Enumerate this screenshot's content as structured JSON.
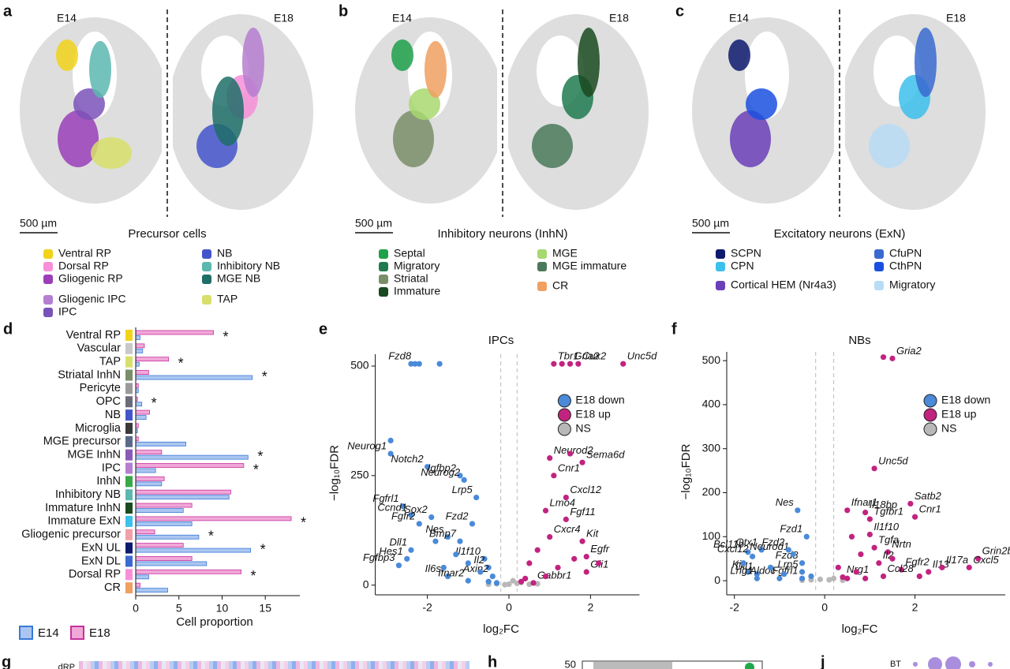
{
  "panels": [
    {
      "letter": "a",
      "left_label": "E14",
      "right_label": "E18",
      "scale_bar": "500 µm",
      "title": "Precursor cells",
      "legend_columns": [
        [
          {
            "name": "Ventral RP",
            "color": "#f2d21b"
          },
          {
            "name": "Dorsal RP",
            "color": "#f78fd8"
          },
          {
            "name": "Gliogenic RP",
            "color": "#9a3fb8"
          },
          {
            "name": "Gliogenic IPC",
            "color": "#b57ed0"
          },
          {
            "name": "IPC",
            "color": "#7b52b8"
          }
        ],
        [
          {
            "name": "NB",
            "color": "#4455cc"
          },
          {
            "name": "Inhibitory NB",
            "color": "#5bb8b0"
          },
          {
            "name": "MGE NB",
            "color": "#1f6e68"
          },
          {
            "name": "TAP",
            "color": "#d8df6a"
          }
        ]
      ]
    },
    {
      "letter": "b",
      "left_label": "E14",
      "right_label": "E18",
      "scale_bar": "500 µm",
      "title": "Inhibitory neurons (InhN)",
      "legend_columns": [
        [
          {
            "name": "Septal",
            "color": "#1fa04a"
          },
          {
            "name": "Migratory",
            "color": "#1f7a50"
          },
          {
            "name": "Striatal",
            "color": "#7a8e6a"
          },
          {
            "name": "Immature",
            "color": "#1a4a20"
          }
        ],
        [
          {
            "name": "MGE",
            "color": "#a8d870"
          },
          {
            "name": "MGE immature",
            "color": "#4a7a5a"
          },
          {
            "name": "CR",
            "color": "#f0a060"
          }
        ]
      ]
    },
    {
      "letter": "c",
      "left_label": "E14",
      "right_label": "E18",
      "scale_bar": "500 µm",
      "title": "Excitatory neurons (ExN)",
      "legend_columns": [
        [
          {
            "name": "SCPN",
            "color": "#0d1a6e"
          },
          {
            "name": "CPN",
            "color": "#3cc0ec"
          },
          {
            "name": "Cortical HEM (Nr4a3)",
            "color": "#6a3fb8"
          }
        ],
        [
          {
            "name": "CfuPN",
            "color": "#3a6ad0"
          },
          {
            "name": "CthPN",
            "color": "#1a50e0"
          },
          {
            "name": "Migratory",
            "color": "#b8dcf5"
          }
        ]
      ]
    }
  ],
  "chart_data": [
    {
      "type": "bar",
      "letter": "d",
      "orientation": "horizontal",
      "categories": [
        "Ventral RP",
        "Vascular",
        "TAP",
        "Striatal InhN",
        "Pericyte",
        "OPC",
        "NB",
        "Microglia",
        "MGE precursor",
        "MGE InhN",
        "IPC",
        "InhN",
        "Inhibitory NB",
        "Immature InhN",
        "Immature ExN",
        "Gliogenic precursor",
        "ExN UL",
        "ExN DL",
        "Dorsal RP",
        "CR"
      ],
      "category_colors": [
        "#f2d21b",
        "#c8c8c8",
        "#d8df6a",
        "#7a8e6a",
        "#9a9a9a",
        "#6a6a7a",
        "#4455cc",
        "#3a3a3a",
        "#5a6a8a",
        "#8a5ab8",
        "#b57ed0",
        "#3aa84a",
        "#5bb8b0",
        "#1a4a20",
        "#3cc0ec",
        "#f0a0a8",
        "#0d1a6e",
        "#3a6ad0",
        "#f78fd8",
        "#f0a060"
      ],
      "series": [
        {
          "name": "E14",
          "color": "#aac6f0",
          "edge": "#3a78d8",
          "values": [
            0.5,
            0.8,
            0.4,
            13.5,
            0.3,
            0.7,
            1.2,
            0.2,
            5.8,
            13,
            2.3,
            3,
            10.8,
            5.5,
            6.5,
            7.3,
            13.3,
            8.2,
            1.5,
            3.7
          ]
        },
        {
          "name": "E18",
          "color": "#f0a8d8",
          "edge": "#c8309e",
          "values": [
            9,
            1,
            3.8,
            1.5,
            0.3,
            0.2,
            1.6,
            0.3,
            0.3,
            3,
            12.5,
            3.3,
            11,
            6.5,
            18,
            2.2,
            5.5,
            6.5,
            12.2,
            0.5
          ]
        }
      ],
      "significance": [
        "*",
        null,
        "*",
        "*",
        null,
        "*",
        null,
        null,
        null,
        "*",
        "*",
        null,
        null,
        null,
        "*",
        "*",
        "*",
        null,
        "*",
        null
      ],
      "xlabel": "Cell proportion",
      "xlim": [
        0,
        19
      ],
      "xticks": [
        0,
        5,
        10,
        15
      ]
    },
    {
      "type": "scatter",
      "letter": "e",
      "title": "IPCs",
      "xlabel": "log₂FC",
      "ylabel": "−log₁₀FDR",
      "legend": "upper right",
      "xlim": [
        -3.2,
        3.2
      ],
      "xticks": [
        -2,
        0,
        2
      ],
      "ylim": [
        -15,
        527
      ],
      "yticks": [
        0,
        250,
        500
      ],
      "thresholds": [
        -0.2,
        0.2
      ],
      "series": [
        {
          "name": "E18 down",
          "color": "#4a8ad8",
          "x": [
            -2.3,
            -2.9,
            -2.0,
            -1.2,
            -1.1,
            -2.6,
            -2.4,
            -1.9,
            -1.5,
            -2.2,
            -2.4,
            -2.5,
            -1.2,
            -0.9,
            -0.8,
            -0.6,
            -0.5,
            -0.4,
            -1.5,
            -1.0,
            -2.7,
            -2.4,
            -2.2,
            -1.7,
            -2.9,
            -1.8,
            -1.3,
            -0.7,
            -1.0,
            -1.6,
            -0.5,
            -0.3
          ],
          "values": [
            505,
            300,
            270,
            250,
            240,
            180,
            160,
            155,
            110,
            140,
            80,
            60,
            100,
            140,
            200,
            60,
            40,
            20,
            20,
            10,
            45,
            505,
            505,
            505,
            330,
            100,
            70,
            30,
            50,
            40,
            8,
            5
          ],
          "point_labels": [
            "Fzd8",
            "Neurog1",
            "Notch2",
            "Igfbp2",
            "Neurog2",
            "Fgfrl1",
            "Ccnd1",
            "Sox2",
            "Nes",
            "Fgfr2",
            "Dll1",
            "Hes1",
            "Bmp7",
            "Fzd2",
            "Lrp5",
            "Il1f10",
            "Il2",
            "Axin2",
            "Il6st",
            "Ifnar2",
            "Fgfbp3",
            null,
            null,
            null,
            null,
            null,
            null,
            null,
            null,
            null,
            null,
            null
          ]
        },
        {
          "name": "E18 up",
          "color": "#c2237f",
          "x": [
            1.1,
            1.5,
            1.7,
            2.8,
            1.0,
            1.8,
            1.1,
            1.4,
            0.9,
            1.4,
            1.0,
            1.8,
            1.9,
            1.9,
            0.6,
            1.3,
            1.5,
            0.7,
            0.5,
            1.2,
            0.9,
            0.4,
            1.6,
            2.2,
            0.3
          ],
          "values": [
            505,
            505,
            505,
            505,
            290,
            280,
            250,
            200,
            170,
            150,
            110,
            100,
            65,
            30,
            5,
            505,
            300,
            80,
            50,
            40,
            20,
            15,
            60,
            50,
            8
          ],
          "point_labels": [
            "Tbr1",
            "Gria2",
            "Cux2",
            "Unc5d",
            "Neurod2",
            "Sema6d",
            "Cnr1",
            "Cxcl12",
            "Lmo4",
            "Fgf11",
            "Cxcr4",
            "Kit",
            "Egfr",
            "Gli1",
            "Gabbr1",
            null,
            null,
            null,
            null,
            null,
            null,
            null,
            null,
            null,
            null
          ]
        },
        {
          "name": "NS",
          "color": "#b8b8b8",
          "x": [
            -0.3,
            0,
            0.2,
            -0.1,
            0.3,
            0.5,
            -0.5,
            0.1,
            0.7
          ],
          "values": [
            3,
            2,
            4,
            1,
            6,
            2,
            2,
            10,
            3
          ],
          "point_labels": [
            null,
            null,
            null,
            null,
            null,
            null,
            null,
            null,
            null
          ]
        }
      ]
    },
    {
      "type": "scatter",
      "letter": "f",
      "title": "NBs",
      "xlabel": "log₂FC",
      "ylabel": "−log₁₀FDR",
      "legend": "upper right",
      "xlim": [
        -2.1,
        4.0
      ],
      "xticks": [
        -2,
        0,
        2
      ],
      "ylim": [
        -25,
        520
      ],
      "yticks": [
        0,
        100,
        200,
        300,
        400,
        500
      ],
      "thresholds": [
        -0.2,
        0.2
      ],
      "series": [
        {
          "name": "E18 down",
          "color": "#4a8ad8",
          "x": [
            -1.7,
            -1.6,
            -1.4,
            -1.7,
            -1.5,
            -1.5,
            -1.0,
            -0.5,
            -0.5,
            -0.5,
            -0.7,
            -0.4,
            -0.8,
            -0.6,
            -1.8,
            -1.2,
            -0.9,
            -0.3
          ],
          "values": [
            65,
            55,
            70,
            20,
            15,
            5,
            5,
            5,
            20,
            40,
            60,
            100,
            70,
            160,
            40,
            30,
            15,
            10
          ],
          "point_labels": [
            "Bcl11b",
            "Cxcl12",
            "Otx1",
            "Kit",
            "Dll1",
            "Lrig1",
            "Aldoc",
            "Fgfrl1",
            "Lrp5",
            "Fzd8",
            "Neurod1",
            "Fzd1",
            "Fzd2",
            "Nes",
            null,
            null,
            null,
            null
          ]
        },
        {
          "name": "E18 up",
          "color": "#c2237f",
          "x": [
            1.5,
            1.1,
            1.9,
            2.0,
            0.9,
            1.0,
            0.5,
            1.0,
            1.1,
            1.4,
            1.2,
            1.7,
            2.3,
            2.6,
            3.4,
            3.2,
            1.3,
            0.4,
            1.3,
            0.6,
            0.8,
            0.3,
            0.7,
            1.5,
            0.5,
            2.1,
            0.9
          ],
          "values": [
            505,
            255,
            175,
            145,
            155,
            140,
            160,
            105,
            75,
            65,
            40,
            25,
            20,
            30,
            50,
            30,
            10,
            8,
            508,
            100,
            60,
            30,
            20,
            50,
            5,
            10,
            5
          ],
          "point_labels": [
            "Gria2",
            "Unc5d",
            "Satb2",
            "Cnr1",
            "Il18bp",
            "Tgfbr1",
            "Ifnar1",
            "Il1f10",
            "Tgfa",
            "Nrtn",
            "Il2",
            "Fgfr2",
            "Il13",
            "Il17a",
            "Grin2b",
            "Cxcl5",
            "Ccl28",
            "Nrg1",
            null,
            null,
            null,
            null,
            null,
            null,
            null,
            null,
            null
          ]
        },
        {
          "name": "NS",
          "color": "#b8b8b8",
          "x": [
            -0.1,
            0.1,
            0.2,
            -0.3,
            0.4,
            -0.5
          ],
          "values": [
            3,
            2,
            5,
            2,
            1,
            1
          ],
          "point_labels": [
            null,
            null,
            null,
            null,
            null,
            null
          ]
        }
      ]
    }
  ],
  "bottom_panels": {
    "g": {
      "letter": "g",
      "row_label": "dRP"
    },
    "h": {
      "letter": "h",
      "ytick": 50
    },
    "j": {
      "letter": "j",
      "row_label": "BT"
    }
  }
}
